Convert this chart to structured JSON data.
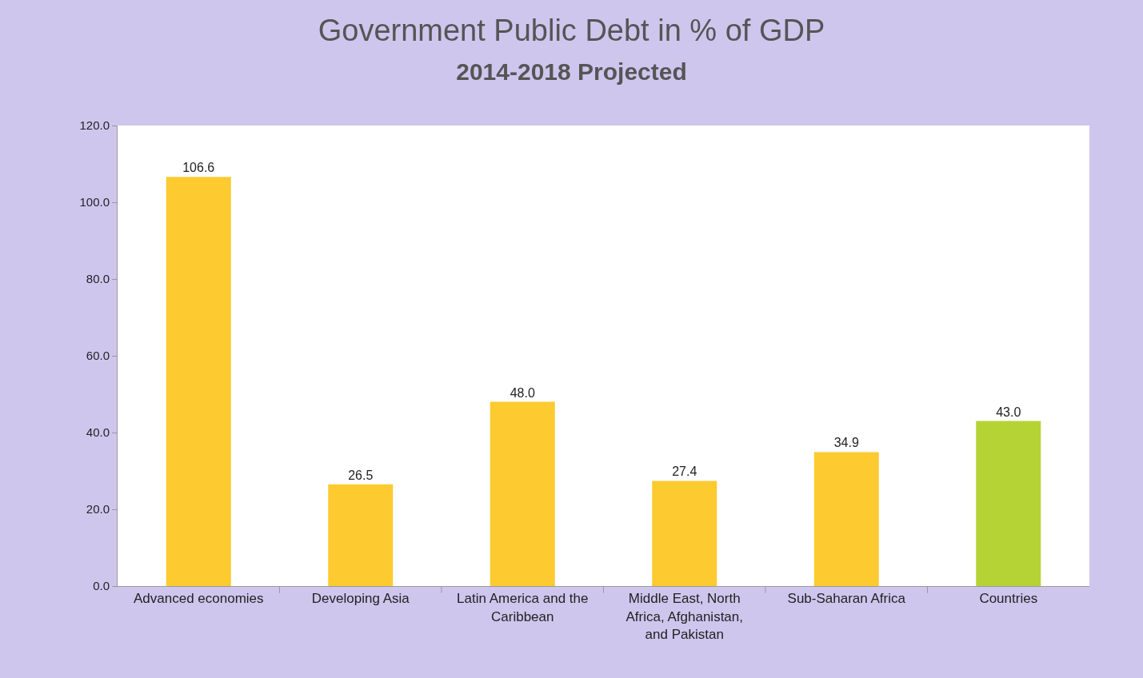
{
  "chart_data": {
    "type": "bar",
    "title": "Government Public Debt in % of GDP",
    "subtitle": "2014-2018 Projected",
    "categories": [
      "Advanced economies",
      "Developing Asia",
      "Latin America and the Caribbean",
      "Middle East, North Africa, Afghanistan, and Pakistan",
      "Sub-Saharan Africa",
      "Countries"
    ],
    "values": [
      106.6,
      26.5,
      48.0,
      27.4,
      34.9,
      43.0
    ],
    "colors": [
      "#fdca30",
      "#fdca30",
      "#fdca30",
      "#fdca30",
      "#fdca30",
      "#b5d334"
    ],
    "value_labels": [
      "106.6",
      "26.5",
      "48.0",
      "27.4",
      "34.9",
      "43.0"
    ],
    "ylim": [
      0,
      120
    ],
    "yticks": [
      {
        "value": 0,
        "label": "0.0"
      },
      {
        "value": 20,
        "label": "20.0"
      },
      {
        "value": 40,
        "label": "40.0"
      },
      {
        "value": 60,
        "label": "60.0"
      },
      {
        "value": 80,
        "label": "80.0"
      },
      {
        "value": 100,
        "label": "100.0"
      },
      {
        "value": 120,
        "label": "120.0"
      }
    ],
    "grid": false,
    "legend": false
  }
}
